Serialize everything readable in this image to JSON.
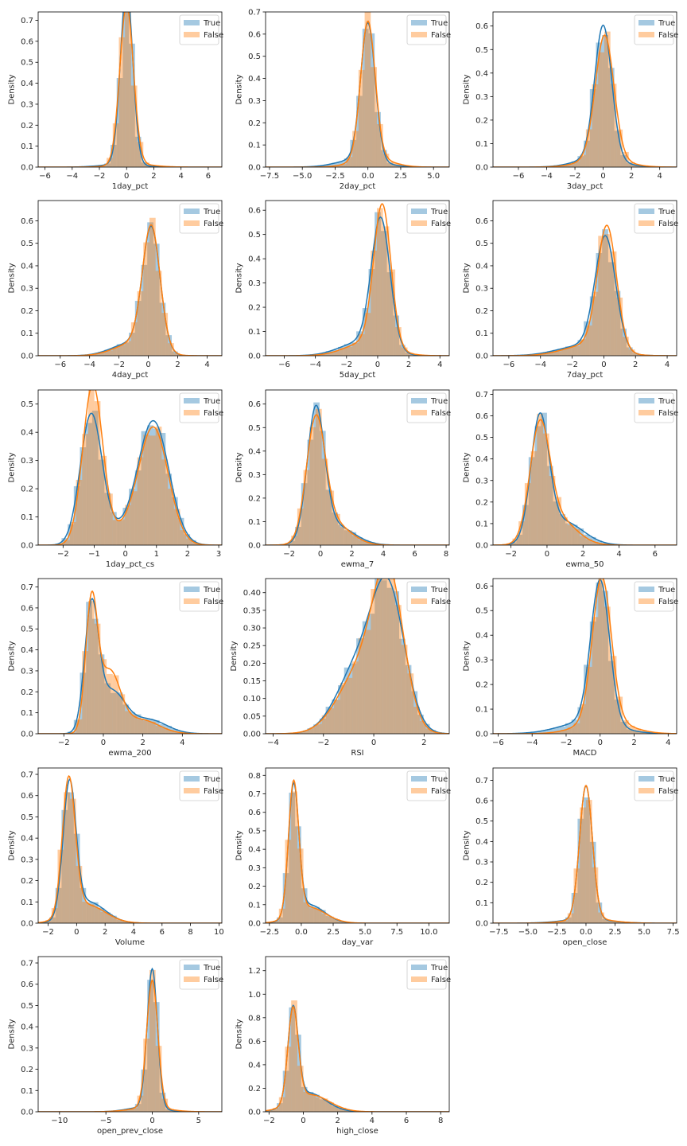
{
  "colors": {
    "true": "#1f77b4",
    "false": "#ff7f0e",
    "hist_true_alpha": 0.4,
    "hist_false_alpha": 0.4
  },
  "legend": [
    "True",
    "False"
  ],
  "chart_data": [
    {
      "type": "histogram+kde",
      "xlabel": "1day_pct",
      "ylabel": "Density",
      "xlim": [
        -6.5,
        7
      ],
      "ylim": [
        0,
        0.74
      ],
      "xticks": [
        -6,
        -4,
        -2,
        0,
        2,
        4,
        6
      ],
      "yticks": [
        0,
        0.1,
        0.2,
        0.3,
        0.4,
        0.5,
        0.6,
        0.7
      ],
      "series": [
        {
          "name": "True",
          "mixture": [
            [
              0,
              0.45,
              0.95
            ],
            [
              -0.4,
              1.4,
              0.05
            ]
          ]
        },
        {
          "name": "False",
          "mixture": [
            [
              0,
              0.5,
              0.95
            ],
            [
              0.5,
              1.4,
              0.05
            ]
          ]
        }
      ],
      "legend_loc": "upper right"
    },
    {
      "type": "histogram+kde",
      "xlabel": "2day_pct",
      "ylabel": "Density",
      "xlim": [
        -7.8,
        6.2
      ],
      "ylim": [
        0,
        0.7
      ],
      "xticks": [
        -7.5,
        -5.0,
        -2.5,
        0.0,
        2.5,
        5.0
      ],
      "yticks": [
        0,
        0.1,
        0.2,
        0.3,
        0.4,
        0.5,
        0.6,
        0.7
      ],
      "series": [
        {
          "name": "True",
          "mixture": [
            [
              0,
              0.55,
              0.85
            ],
            [
              -0.6,
              1.6,
              0.15
            ]
          ]
        },
        {
          "name": "False",
          "mixture": [
            [
              0,
              0.55,
              0.85
            ],
            [
              0.3,
              1.4,
              0.15
            ]
          ]
        }
      ],
      "legend_loc": "upper right"
    },
    {
      "type": "histogram+kde",
      "xlabel": "3day_pct",
      "ylabel": "Density",
      "xlim": [
        -7.8,
        5.2
      ],
      "ylim": [
        0,
        0.66
      ],
      "xticks": [
        -6,
        -4,
        -2,
        0,
        2,
        4
      ],
      "yticks": [
        0,
        0.1,
        0.2,
        0.3,
        0.4,
        0.5,
        0.6
      ],
      "series": [
        {
          "name": "True",
          "mixture": [
            [
              0,
              0.6,
              0.85
            ],
            [
              -0.4,
              1.5,
              0.15
            ]
          ]
        },
        {
          "name": "False",
          "mixture": [
            [
              0.1,
              0.65,
              0.85
            ],
            [
              0,
              1.5,
              0.15
            ]
          ]
        }
      ],
      "legend_loc": "upper right"
    },
    {
      "type": "histogram+kde",
      "xlabel": "4day_pct",
      "ylabel": "Density",
      "xlim": [
        -7.5,
        5
      ],
      "ylim": [
        0,
        0.69
      ],
      "xticks": [
        -6,
        -4,
        -2,
        0,
        2,
        4
      ],
      "yticks": [
        0,
        0.1,
        0.2,
        0.3,
        0.4,
        0.5,
        0.6
      ],
      "series": [
        {
          "name": "True",
          "mixture": [
            [
              0.2,
              0.6,
              0.82
            ],
            [
              -1.2,
              1.3,
              0.18
            ]
          ]
        },
        {
          "name": "False",
          "mixture": [
            [
              0.2,
              0.6,
              0.82
            ],
            [
              -1,
              1.3,
              0.18
            ]
          ]
        }
      ],
      "legend_loc": "upper right"
    },
    {
      "type": "histogram+kde",
      "xlabel": "5day_pct",
      "ylabel": "Density",
      "xlim": [
        -7.2,
        4.6
      ],
      "ylim": [
        0,
        0.64
      ],
      "xticks": [
        -6,
        -4,
        -2,
        0,
        2,
        4
      ],
      "yticks": [
        0,
        0.1,
        0.2,
        0.3,
        0.4,
        0.5,
        0.6
      ],
      "series": [
        {
          "name": "True",
          "mixture": [
            [
              0.2,
              0.6,
              0.8
            ],
            [
              -1,
              1.4,
              0.2
            ]
          ]
        },
        {
          "name": "False",
          "mixture": [
            [
              0.3,
              0.55,
              0.8
            ],
            [
              -0.6,
              1.4,
              0.2
            ]
          ]
        }
      ],
      "legend_loc": "upper right"
    },
    {
      "type": "histogram+kde",
      "xlabel": "7day_pct",
      "ylabel": "Density",
      "xlim": [
        -7,
        4.6
      ],
      "ylim": [
        0,
        0.69
      ],
      "xticks": [
        -6,
        -4,
        -2,
        0,
        2,
        4
      ],
      "yticks": [
        0,
        0.1,
        0.2,
        0.3,
        0.4,
        0.5,
        0.6
      ],
      "series": [
        {
          "name": "True",
          "mixture": [
            [
              0.1,
              0.65,
              0.82
            ],
            [
              -1.3,
              1.6,
              0.18
            ]
          ]
        },
        {
          "name": "False",
          "mixture": [
            [
              0.2,
              0.6,
              0.82
            ],
            [
              -1,
              1.5,
              0.18
            ]
          ]
        }
      ],
      "legend_loc": "upper right"
    },
    {
      "type": "histogram+kde",
      "xlabel": "1day_pct_cs",
      "ylabel": "Density",
      "xlim": [
        -2.8,
        3.1
      ],
      "ylim": [
        0,
        0.55
      ],
      "xticks": [
        -2,
        -1,
        0,
        1,
        2,
        3
      ],
      "yticks": [
        0,
        0.1,
        0.2,
        0.3,
        0.4,
        0.5
      ],
      "series": [
        {
          "name": "True",
          "mixture": [
            [
              -1.1,
              0.35,
              0.4
            ],
            [
              0.9,
              0.5,
              0.55
            ],
            [
              -0.3,
              0.5,
              0.05
            ]
          ]
        },
        {
          "name": "False",
          "mixture": [
            [
              -1.05,
              0.32,
              0.45
            ],
            [
              0.9,
              0.48,
              0.5
            ],
            [
              -0.2,
              0.5,
              0.05
            ]
          ]
        }
      ],
      "legend_loc": "upper right"
    },
    {
      "type": "histogram+kde",
      "xlabel": "ewma_7",
      "ylabel": "Density",
      "xlim": [
        -3.5,
        8.2
      ],
      "ylim": [
        0,
        0.66
      ],
      "xticks": [
        -2,
        0,
        2,
        4,
        6,
        8
      ],
      "yticks": [
        0,
        0.1,
        0.2,
        0.3,
        0.4,
        0.5,
        0.6
      ],
      "series": [
        {
          "name": "True",
          "mixture": [
            [
              -0.3,
              0.55,
              0.75
            ],
            [
              0.9,
              1.2,
              0.25
            ]
          ]
        },
        {
          "name": "False",
          "mixture": [
            [
              -0.3,
              0.6,
              0.75
            ],
            [
              0.8,
              1.1,
              0.25
            ]
          ]
        }
      ],
      "legend_loc": "upper right"
    },
    {
      "type": "histogram+kde",
      "xlabel": "ewma_50",
      "ylabel": "Density",
      "xlim": [
        -3,
        7.2
      ],
      "ylim": [
        0,
        0.72
      ],
      "xticks": [
        -2,
        0,
        2,
        4,
        6
      ],
      "yticks": [
        0,
        0.1,
        0.2,
        0.3,
        0.4,
        0.5,
        0.6,
        0.7
      ],
      "series": [
        {
          "name": "True",
          "mixture": [
            [
              -0.4,
              0.5,
              0.7
            ],
            [
              0.9,
              1.1,
              0.3
            ]
          ]
        },
        {
          "name": "False",
          "mixture": [
            [
              -0.4,
              0.55,
              0.7
            ],
            [
              0.6,
              1,
              0.3
            ]
          ]
        }
      ],
      "legend_loc": "upper right"
    },
    {
      "type": "histogram+kde",
      "xlabel": "ewma_200",
      "ylabel": "Density",
      "xlim": [
        -3.3,
        6
      ],
      "ylim": [
        0,
        0.74
      ],
      "xticks": [
        -2,
        0,
        2,
        4
      ],
      "yticks": [
        0,
        0.1,
        0.2,
        0.3,
        0.4,
        0.5,
        0.6,
        0.7
      ],
      "series": [
        {
          "name": "True",
          "mixture": [
            [
              -0.6,
              0.35,
              0.5
            ],
            [
              0.4,
              0.7,
              0.35
            ],
            [
              2.3,
              0.9,
              0.15
            ]
          ]
        },
        {
          "name": "False",
          "mixture": [
            [
              -0.6,
              0.3,
              0.45
            ],
            [
              0.3,
              0.55,
              0.4
            ],
            [
              1.9,
              0.9,
              0.15
            ]
          ]
        }
      ],
      "legend_loc": "upper right"
    },
    {
      "type": "histogram+kde",
      "xlabel": "RSI",
      "ylabel": "Density",
      "xlim": [
        -4.3,
        3
      ],
      "ylim": [
        0,
        0.44
      ],
      "xticks": [
        -4,
        -2,
        0,
        2
      ],
      "yticks": [
        0,
        0.05,
        0.1,
        0.15,
        0.2,
        0.25,
        0.3,
        0.35,
        0.4
      ],
      "series": [
        {
          "name": "True",
          "mixture": [
            [
              0.6,
              0.65,
              0.6
            ],
            [
              -0.6,
              0.85,
              0.4
            ]
          ]
        },
        {
          "name": "False",
          "mixture": [
            [
              0.6,
              0.6,
              0.6
            ],
            [
              -0.5,
              0.9,
              0.4
            ]
          ]
        }
      ],
      "legend_loc": "upper right"
    },
    {
      "type": "histogram+kde",
      "xlabel": "MACD",
      "ylabel": "Density",
      "xlim": [
        -6.3,
        4.5
      ],
      "ylim": [
        0,
        0.63
      ],
      "xticks": [
        -6,
        -4,
        -2,
        0,
        2,
        4
      ],
      "yticks": [
        0,
        0.1,
        0.2,
        0.3,
        0.4,
        0.5,
        0.6
      ],
      "series": [
        {
          "name": "True",
          "mixture": [
            [
              0,
              0.55,
              0.8
            ],
            [
              -0.7,
              1.6,
              0.2
            ]
          ]
        },
        {
          "name": "False",
          "mixture": [
            [
              0.1,
              0.55,
              0.8
            ],
            [
              0.2,
              1.4,
              0.2
            ]
          ]
        }
      ],
      "legend_loc": "upper right"
    },
    {
      "type": "histogram+kde",
      "xlabel": "Volume",
      "ylabel": "Density",
      "xlim": [
        -2.7,
        10.2
      ],
      "ylim": [
        0,
        0.73
      ],
      "xticks": [
        -2,
        0,
        2,
        4,
        6,
        8,
        10
      ],
      "yticks": [
        0,
        0.1,
        0.2,
        0.3,
        0.4,
        0.5,
        0.6,
        0.7
      ],
      "series": [
        {
          "name": "True",
          "mixture": [
            [
              -0.5,
              0.45,
              0.7
            ],
            [
              0.8,
              1.2,
              0.3
            ]
          ]
        },
        {
          "name": "False",
          "mixture": [
            [
              -0.55,
              0.45,
              0.72
            ],
            [
              0.7,
              1.3,
              0.28
            ]
          ]
        }
      ],
      "legend_loc": "upper right"
    },
    {
      "type": "histogram+kde",
      "xlabel": "day_var",
      "ylabel": "Density",
      "xlim": [
        -2.8,
        11.6
      ],
      "ylim": [
        0,
        0.84
      ],
      "xticks": [
        -2.5,
        0.0,
        2.5,
        5.0,
        7.5,
        10.0
      ],
      "yticks": [
        0,
        0.1,
        0.2,
        0.3,
        0.4,
        0.5,
        0.6,
        0.7,
        0.8
      ],
      "series": [
        {
          "name": "True",
          "mixture": [
            [
              -0.6,
              0.4,
              0.7
            ],
            [
              0.6,
              1.2,
              0.3
            ]
          ]
        },
        {
          "name": "False",
          "mixture": [
            [
              -0.6,
              0.4,
              0.72
            ],
            [
              0.6,
              1.3,
              0.28
            ]
          ]
        }
      ],
      "legend_loc": "upper right"
    },
    {
      "type": "histogram+kde",
      "xlabel": "open_close",
      "ylabel": "Density",
      "xlim": [
        -8,
        7.8
      ],
      "ylim": [
        0,
        0.76
      ],
      "xticks": [
        -7.5,
        -5.0,
        -2.5,
        0.0,
        2.5,
        5.0,
        7.5
      ],
      "yticks": [
        0,
        0.1,
        0.2,
        0.3,
        0.4,
        0.5,
        0.6,
        0.7
      ],
      "series": [
        {
          "name": "True",
          "mixture": [
            [
              0,
              0.55,
              0.9
            ],
            [
              0,
              2,
              0.1
            ]
          ]
        },
        {
          "name": "False",
          "mixture": [
            [
              0,
              0.55,
              0.9
            ],
            [
              0.3,
              1.8,
              0.1
            ]
          ]
        }
      ],
      "legend_loc": "upper right"
    },
    {
      "type": "histogram+kde",
      "xlabel": "open_prev_close",
      "ylabel": "Density",
      "xlim": [
        -12.3,
        7.5
      ],
      "ylim": [
        0,
        0.73
      ],
      "xticks": [
        -10,
        -5,
        0,
        5
      ],
      "yticks": [
        0,
        0.1,
        0.2,
        0.3,
        0.4,
        0.5,
        0.6,
        0.7
      ],
      "series": [
        {
          "name": "True",
          "mixture": [
            [
              0,
              0.55,
              0.9
            ],
            [
              -0.8,
              1.8,
              0.1
            ]
          ]
        },
        {
          "name": "False",
          "mixture": [
            [
              0,
              0.6,
              0.9
            ],
            [
              -0.3,
              2,
              0.1
            ]
          ]
        }
      ],
      "legend_loc": "upper right"
    },
    {
      "type": "histogram+kde",
      "xlabel": "high_close",
      "ylabel": "Density",
      "xlim": [
        -2.2,
        8.5
      ],
      "ylim": [
        0,
        1.32
      ],
      "xticks": [
        -2,
        0,
        2,
        4,
        6,
        8
      ],
      "yticks": [
        0,
        0.2,
        0.4,
        0.6,
        0.8,
        1.0,
        1.2
      ],
      "series": [
        {
          "name": "True",
          "mixture": [
            [
              -0.6,
              0.3,
              0.6
            ],
            [
              0.3,
              1,
              0.4
            ]
          ]
        },
        {
          "name": "False",
          "mixture": [
            [
              -0.6,
              0.3,
              0.6
            ],
            [
              0.4,
              1.1,
              0.4
            ]
          ]
        }
      ],
      "legend_loc": "upper right"
    }
  ]
}
